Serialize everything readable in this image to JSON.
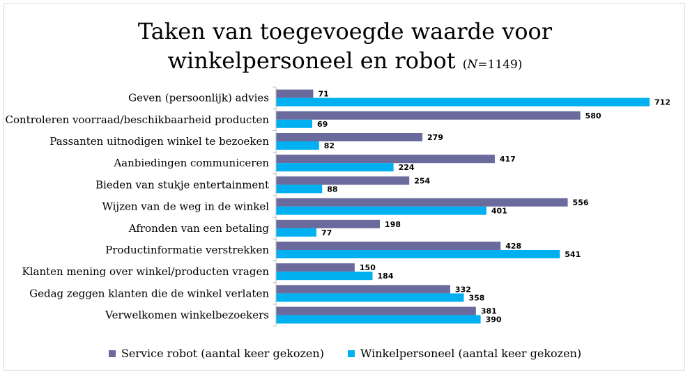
{
  "chart_data": {
    "type": "bar",
    "orientation": "horizontal",
    "title_line1": "Taken van toegevoegde waarde voor",
    "title_line2": "winkelpersoneel en robot",
    "title_n_var": "N",
    "title_n_rest": "=1149)",
    "title_n_open": "(",
    "categories": [
      "Geven (persoonlijk) advies",
      "Controleren voorraad/beschikbaarheid producten",
      "Passanten uitnodigen winkel te bezoeken",
      "Aanbiedingen communiceren",
      "Bieden van stukje entertainment",
      "Wijzen van de weg in de winkel",
      "Afronden van een betaling",
      "Productinformatie verstrekken",
      "Klanten mening over winkel/producten vragen",
      "Gedag zeggen klanten die de winkel verlaten",
      "Verwelkomen winkelbezoekers"
    ],
    "series": [
      {
        "name": "Service robot (aantal keer gekozen)",
        "color": "#6a6a9c",
        "values": [
          71,
          580,
          279,
          417,
          254,
          556,
          198,
          428,
          150,
          332,
          381
        ]
      },
      {
        "name": "Winkelpersoneel (aantal keer gekozen)",
        "color": "#00b0f0",
        "values": [
          712,
          69,
          82,
          224,
          88,
          401,
          77,
          541,
          184,
          358,
          390
        ]
      }
    ],
    "xlim": [
      0,
      730
    ],
    "grid": false,
    "legend_position": "bottom"
  }
}
